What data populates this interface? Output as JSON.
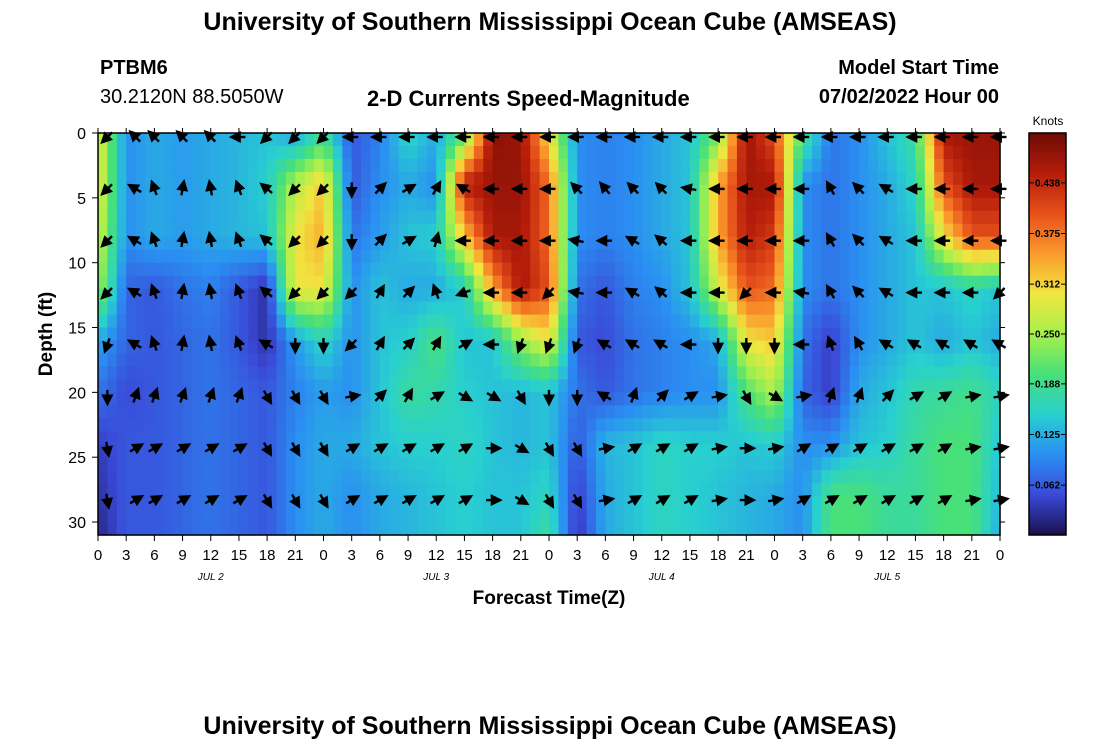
{
  "header": {
    "title": "University of Southern Mississippi Ocean Cube (AMSEAS)",
    "station_name": "PTBM6",
    "station_coords": "30.2120N  88.5050W",
    "plot_name": "2-D Currents Speed-Magnitude",
    "model_label": "Model Start Time",
    "model_time": "07/02/2022 Hour 00"
  },
  "footer": {
    "title": "University of Southern Mississippi Ocean Cube (AMSEAS)"
  },
  "chart_data": {
    "type": "heatmap",
    "title": "2-D Currents Speed-Magnitude",
    "xlabel": "Forecast Time(Z)",
    "ylabel": "Depth (ft)",
    "x_hours_range": [
      0,
      96
    ],
    "ylim": [
      0,
      31
    ],
    "y_inverted": true,
    "x_tick_labels": [
      "0",
      "3",
      "6",
      "9",
      "12",
      "15",
      "18",
      "21",
      "0",
      "3",
      "6",
      "9",
      "12",
      "15",
      "18",
      "21",
      "0",
      "3",
      "6",
      "9",
      "12",
      "15",
      "18",
      "21",
      "0",
      "3",
      "6",
      "9",
      "12",
      "15",
      "18",
      "21",
      "0"
    ],
    "y_ticks": [
      0,
      5,
      10,
      15,
      20,
      25,
      30
    ],
    "y_tick_labels": [
      "0",
      "5",
      "10",
      "15",
      "20",
      "25",
      "30"
    ],
    "day_labels": [
      {
        "label": "JUL 2",
        "hour": 12
      },
      {
        "label": "JUL 3",
        "hour": 36
      },
      {
        "label": "JUL 4",
        "hour": 60
      },
      {
        "label": "JUL 5",
        "hour": 84
      }
    ],
    "colorbar": {
      "title": "Knots",
      "range": [
        0,
        0.5
      ],
      "tick_values": [
        0.062,
        0.125,
        0.188,
        0.25,
        0.312,
        0.375,
        0.438
      ],
      "tick_labels": [
        "0.062",
        "0.125",
        "0.188",
        "0.250",
        "0.312",
        "0.375",
        "0.438"
      ],
      "colors": [
        "#1a0f4d",
        "#3a4ad8",
        "#2a8ff2",
        "#28d0cf",
        "#48e078",
        "#a6f04c",
        "#f0e640",
        "#fb9a2c",
        "#e6501a",
        "#b41c0a",
        "#6e0c04"
      ]
    },
    "depth_levels_ft": [
      0,
      4,
      8,
      12,
      16,
      20,
      24,
      28,
      31
    ],
    "hours": [
      0,
      3,
      6,
      9,
      12,
      15,
      18,
      21,
      24,
      27,
      30,
      33,
      36,
      39,
      42,
      45,
      48,
      51,
      54,
      57,
      60,
      63,
      66,
      69,
      72,
      75,
      78,
      81,
      84,
      87,
      90,
      93,
      96
    ],
    "speed_knots": [
      [
        0.3,
        0.1,
        0.12,
        0.11,
        0.12,
        0.13,
        0.14,
        0.11,
        0.18,
        0.06,
        0.09,
        0.16,
        0.12,
        0.2,
        0.48,
        0.47,
        0.3,
        0.1,
        0.09,
        0.1,
        0.12,
        0.14,
        0.22,
        0.47,
        0.4,
        0.2,
        0.08,
        0.1,
        0.14,
        0.18,
        0.46,
        0.47,
        0.47
      ],
      [
        0.3,
        0.1,
        0.12,
        0.11,
        0.12,
        0.13,
        0.15,
        0.26,
        0.32,
        0.06,
        0.1,
        0.12,
        0.1,
        0.45,
        0.47,
        0.47,
        0.38,
        0.1,
        0.09,
        0.1,
        0.12,
        0.14,
        0.34,
        0.46,
        0.46,
        0.1,
        0.08,
        0.1,
        0.12,
        0.16,
        0.4,
        0.46,
        0.46
      ],
      [
        0.28,
        0.1,
        0.12,
        0.11,
        0.12,
        0.13,
        0.14,
        0.3,
        0.34,
        0.08,
        0.11,
        0.14,
        0.15,
        0.32,
        0.46,
        0.46,
        0.38,
        0.1,
        0.09,
        0.1,
        0.12,
        0.14,
        0.34,
        0.45,
        0.42,
        0.1,
        0.08,
        0.1,
        0.12,
        0.14,
        0.3,
        0.4,
        0.4
      ],
      [
        0.25,
        0.07,
        0.06,
        0.08,
        0.09,
        0.06,
        0.03,
        0.3,
        0.3,
        0.1,
        0.14,
        0.12,
        0.12,
        0.15,
        0.34,
        0.46,
        0.4,
        0.08,
        0.06,
        0.09,
        0.1,
        0.14,
        0.28,
        0.4,
        0.38,
        0.1,
        0.08,
        0.1,
        0.12,
        0.14,
        0.14,
        0.16,
        0.14
      ],
      [
        0.12,
        0.07,
        0.06,
        0.07,
        0.08,
        0.06,
        0.03,
        0.11,
        0.16,
        0.1,
        0.14,
        0.15,
        0.2,
        0.14,
        0.14,
        0.24,
        0.3,
        0.06,
        0.05,
        0.08,
        0.09,
        0.1,
        0.12,
        0.3,
        0.32,
        0.08,
        0.04,
        0.1,
        0.12,
        0.14,
        0.12,
        0.14,
        0.12
      ],
      [
        0.08,
        0.05,
        0.06,
        0.07,
        0.08,
        0.07,
        0.06,
        0.09,
        0.11,
        0.1,
        0.14,
        0.18,
        0.17,
        0.15,
        0.14,
        0.13,
        0.14,
        0.08,
        0.06,
        0.08,
        0.09,
        0.1,
        0.1,
        0.2,
        0.26,
        0.07,
        0.04,
        0.12,
        0.14,
        0.17,
        0.18,
        0.19,
        0.16
      ],
      [
        0.04,
        0.06,
        0.06,
        0.07,
        0.08,
        0.07,
        0.06,
        0.1,
        0.12,
        0.12,
        0.14,
        0.15,
        0.15,
        0.16,
        0.14,
        0.13,
        0.14,
        0.06,
        0.13,
        0.14,
        0.16,
        0.15,
        0.15,
        0.14,
        0.15,
        0.1,
        0.1,
        0.14,
        0.15,
        0.18,
        0.2,
        0.2,
        0.14
      ],
      [
        0.03,
        0.06,
        0.06,
        0.07,
        0.08,
        0.07,
        0.06,
        0.1,
        0.12,
        0.1,
        0.12,
        0.13,
        0.14,
        0.15,
        0.14,
        0.14,
        0.16,
        0.04,
        0.12,
        0.14,
        0.16,
        0.15,
        0.14,
        0.13,
        0.12,
        0.1,
        0.2,
        0.2,
        0.18,
        0.18,
        0.2,
        0.2,
        0.13
      ],
      [
        0.02,
        0.06,
        0.06,
        0.07,
        0.08,
        0.07,
        0.06,
        0.1,
        0.12,
        0.1,
        0.12,
        0.13,
        0.14,
        0.15,
        0.14,
        0.14,
        0.18,
        0.03,
        0.12,
        0.14,
        0.16,
        0.15,
        0.14,
        0.13,
        0.12,
        0.1,
        0.2,
        0.2,
        0.18,
        0.18,
        0.2,
        0.2,
        0.12
      ]
    ],
    "arrow_depths_ft": [
      0,
      4,
      8,
      12,
      16,
      20,
      24,
      28
    ],
    "arrow_hours": [
      1,
      4,
      6,
      9,
      12,
      15,
      18,
      21,
      24,
      27,
      30,
      33,
      36,
      39,
      42,
      45,
      48,
      51,
      54,
      57,
      60,
      63,
      66,
      69,
      72,
      75,
      78,
      81,
      84,
      87,
      90,
      93,
      96
    ],
    "arrow_directions_deg": [
      [
        225,
        315,
        315,
        315,
        315,
        270,
        225,
        225,
        225,
        270,
        270,
        270,
        270,
        270,
        270,
        270,
        270,
        270,
        270,
        270,
        270,
        270,
        270,
        270,
        270,
        270,
        270,
        270,
        270,
        270,
        270,
        270,
        270
      ],
      [
        225,
        300,
        340,
        10,
        350,
        340,
        310,
        225,
        225,
        180,
        45,
        60,
        30,
        300,
        270,
        270,
        270,
        315,
        320,
        315,
        315,
        280,
        270,
        270,
        270,
        270,
        330,
        315,
        300,
        270,
        270,
        270,
        270
      ],
      [
        225,
        300,
        340,
        10,
        350,
        340,
        310,
        225,
        225,
        180,
        45,
        60,
        15,
        270,
        270,
        270,
        270,
        280,
        270,
        300,
        310,
        270,
        270,
        270,
        270,
        270,
        330,
        315,
        300,
        270,
        270,
        270,
        270
      ],
      [
        225,
        300,
        340,
        10,
        350,
        340,
        310,
        225,
        225,
        225,
        30,
        45,
        340,
        250,
        270,
        270,
        225,
        280,
        270,
        300,
        310,
        270,
        270,
        225,
        270,
        280,
        330,
        315,
        300,
        270,
        270,
        270,
        225
      ],
      [
        200,
        300,
        340,
        10,
        350,
        340,
        300,
        180,
        180,
        225,
        30,
        45,
        30,
        60,
        270,
        200,
        200,
        200,
        300,
        300,
        300,
        270,
        180,
        180,
        180,
        270,
        340,
        330,
        300,
        300,
        300,
        300,
        300
      ],
      [
        180,
        20,
        20,
        20,
        20,
        20,
        150,
        150,
        150,
        80,
        45,
        30,
        60,
        120,
        120,
        150,
        180,
        180,
        300,
        20,
        45,
        60,
        80,
        150,
        120,
        80,
        20,
        20,
        45,
        60,
        60,
        80,
        80
      ],
      [
        170,
        60,
        60,
        60,
        60,
        60,
        150,
        150,
        150,
        60,
        60,
        60,
        60,
        60,
        90,
        120,
        150,
        150,
        80,
        60,
        60,
        60,
        80,
        90,
        80,
        60,
        60,
        60,
        60,
        60,
        60,
        80,
        80
      ],
      [
        170,
        60,
        60,
        60,
        60,
        60,
        150,
        150,
        150,
        60,
        60,
        60,
        60,
        60,
        90,
        120,
        150,
        150,
        80,
        60,
        60,
        60,
        80,
        90,
        80,
        60,
        60,
        60,
        60,
        60,
        60,
        80,
        80
      ]
    ]
  }
}
